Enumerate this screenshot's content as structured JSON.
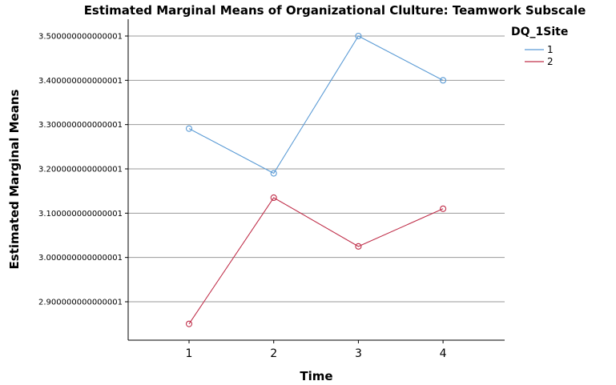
{
  "chart_data": {
    "type": "line",
    "title": "Estimated Marginal Means of Organizational Clulture: Teamwork Subscale",
    "xlabel": "Time",
    "ylabel": "Estimated Marginal Means",
    "categories": [
      "1",
      "2",
      "3",
      "4"
    ],
    "ylim": [
      2.8,
      3.52
    ],
    "yticks": [
      {
        "value": 2.9,
        "label": "2.900000000000001"
      },
      {
        "value": 3.0,
        "label": "3.000000000000001"
      },
      {
        "value": 3.1,
        "label": "3.100000000000001"
      },
      {
        "value": 3.2,
        "label": "3.200000000000001"
      },
      {
        "value": 3.3,
        "label": "3.300000000000001"
      },
      {
        "value": 3.4,
        "label": "3.400000000000001"
      },
      {
        "value": 3.5,
        "label": "3.500000000000001"
      }
    ],
    "grid": "horizontal",
    "legend": {
      "title": "DQ_1Site",
      "position": "top-right"
    },
    "series": [
      {
        "name": "1",
        "color": "#5b9bd5",
        "values": [
          3.291,
          3.19,
          3.5,
          3.4
        ]
      },
      {
        "name": "2",
        "color": "#c0304b",
        "values": [
          2.85,
          3.135,
          3.025,
          3.11
        ]
      }
    ]
  }
}
